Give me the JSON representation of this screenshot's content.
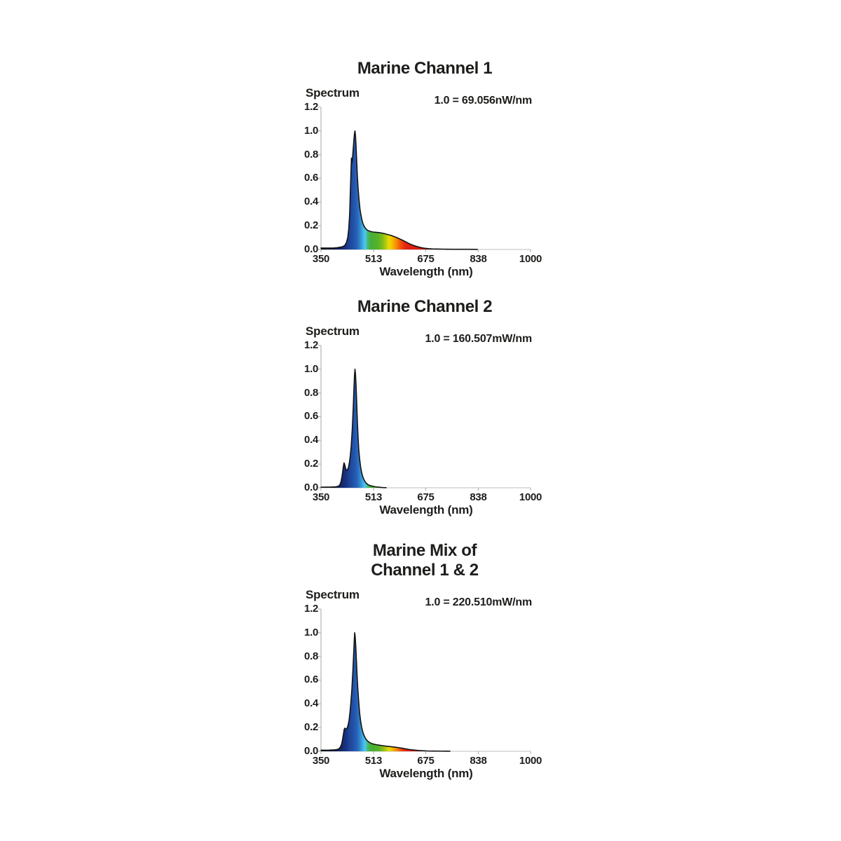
{
  "text_color": "#1d1d1b",
  "axis_color": "#b5b5b5",
  "baseline_color": "#c9c9c9",
  "curve_stroke_color": "#141414",
  "charts": [
    {
      "title_line1": "Marine Channel 1",
      "title_line2": "",
      "y_axis_label": "Spectrum",
      "scale_note": "1.0 = 69.056nW/nm",
      "x_axis_label": "Wavelength (nm)",
      "x_tick_labels": [
        "350",
        "513",
        "675",
        "838",
        "1000"
      ],
      "y_tick_labels": [
        "0.0",
        "0.2",
        "0.4",
        "0.6",
        "0.8",
        "1.0",
        "1.2"
      ]
    },
    {
      "title_line1": "Marine Channel 2",
      "title_line2": "",
      "y_axis_label": "Spectrum",
      "scale_note": "1.0 = 160.507mW/nm",
      "x_axis_label": "Wavelength (nm)",
      "x_tick_labels": [
        "350",
        "513",
        "675",
        "838",
        "1000"
      ],
      "y_tick_labels": [
        "0.0",
        "0.2",
        "0.4",
        "0.6",
        "0.8",
        "1.0",
        "1.2"
      ]
    },
    {
      "title_line1": "Marine Mix of",
      "title_line2": "Channel 1 & 2",
      "y_axis_label": "Spectrum",
      "scale_note": "1.0 = 220.510mW/nm",
      "x_axis_label": "Wavelength (nm)",
      "x_tick_labels": [
        "350",
        "513",
        "675",
        "838",
        "1000"
      ],
      "y_tick_labels": [
        "0.0",
        "0.2",
        "0.4",
        "0.6",
        "0.8",
        "1.0",
        "1.2"
      ]
    }
  ],
  "spectrum_colors": [
    {
      "nm": 350,
      "color": "#0a0a12"
    },
    {
      "nm": 400,
      "color": "#101c55"
    },
    {
      "nm": 425,
      "color": "#17307f"
    },
    {
      "nm": 443,
      "color": "#1f4a9e"
    },
    {
      "nm": 455,
      "color": "#2457af"
    },
    {
      "nm": 464,
      "color": "#2a6abd"
    },
    {
      "nm": 473,
      "color": "#338fd0"
    },
    {
      "nm": 481,
      "color": "#40b5e4"
    },
    {
      "nm": 487,
      "color": "#4cc8ef"
    },
    {
      "nm": 493,
      "color": "#47bd91"
    },
    {
      "nm": 500,
      "color": "#46b24a"
    },
    {
      "nm": 507,
      "color": "#45af36"
    },
    {
      "nm": 526,
      "color": "#54b329"
    },
    {
      "nm": 542,
      "color": "#86bd18"
    },
    {
      "nm": 552,
      "color": "#bacd0c"
    },
    {
      "nm": 561,
      "color": "#e7de06"
    },
    {
      "nm": 569,
      "color": "#f3c303"
    },
    {
      "nm": 578,
      "color": "#f6a201"
    },
    {
      "nm": 587,
      "color": "#f47d03"
    },
    {
      "nm": 597,
      "color": "#f05108"
    },
    {
      "nm": 607,
      "color": "#e93010"
    },
    {
      "nm": 619,
      "color": "#e21f12"
    },
    {
      "nm": 652,
      "color": "#da1911"
    },
    {
      "nm": 682,
      "color": "#b3140c"
    },
    {
      "nm": 712,
      "color": "#6f0f0a"
    },
    {
      "nm": 752,
      "color": "#2f0806"
    },
    {
      "nm": 810,
      "color": "#130a0a"
    },
    {
      "nm": 1000,
      "color": "#0c0c0c"
    }
  ],
  "chart_data": [
    {
      "type": "area",
      "title": "Marine Channel 1",
      "note": "1.0 = 69.056nW/nm",
      "xlabel": "Wavelength (nm)",
      "ylabel": "Spectrum",
      "x_range": [
        350,
        1000
      ],
      "y_range": [
        0,
        1.2
      ],
      "x_ticks": [
        350,
        513,
        675,
        838,
        1000
      ],
      "y_ticks": [
        0,
        0.2,
        0.4,
        0.6,
        0.8,
        1.0,
        1.2
      ],
      "grid": false,
      "points": [
        [
          350,
          0.012
        ],
        [
          370,
          0.012
        ],
        [
          390,
          0.013
        ],
        [
          400,
          0.015
        ],
        [
          410,
          0.02
        ],
        [
          418,
          0.025
        ],
        [
          424,
          0.035
        ],
        [
          429,
          0.06
        ],
        [
          433,
          0.1
        ],
        [
          436,
          0.17
        ],
        [
          439,
          0.3
        ],
        [
          441,
          0.48
        ],
        [
          443,
          0.65
        ],
        [
          444.5,
          0.77
        ],
        [
          446,
          0.73
        ],
        [
          448,
          0.78
        ],
        [
          450,
          0.85
        ],
        [
          452,
          0.92
        ],
        [
          454,
          0.98
        ],
        [
          455.5,
          1.0
        ],
        [
          457,
          0.96
        ],
        [
          459,
          0.86
        ],
        [
          461,
          0.73
        ],
        [
          463,
          0.61
        ],
        [
          465,
          0.52
        ],
        [
          468,
          0.42
        ],
        [
          471,
          0.34
        ],
        [
          474,
          0.29
        ],
        [
          477,
          0.25
        ],
        [
          480,
          0.22
        ],
        [
          484,
          0.195
        ],
        [
          489,
          0.175
        ],
        [
          494,
          0.163
        ],
        [
          500,
          0.155
        ],
        [
          507,
          0.15
        ],
        [
          513,
          0.147
        ],
        [
          520,
          0.145
        ],
        [
          528,
          0.143
        ],
        [
          536,
          0.14
        ],
        [
          544,
          0.136
        ],
        [
          552,
          0.13
        ],
        [
          560,
          0.124
        ],
        [
          568,
          0.118
        ],
        [
          576,
          0.11
        ],
        [
          584,
          0.102
        ],
        [
          592,
          0.092
        ],
        [
          600,
          0.082
        ],
        [
          608,
          0.071
        ],
        [
          616,
          0.06
        ],
        [
          624,
          0.049
        ],
        [
          632,
          0.04
        ],
        [
          640,
          0.032
        ],
        [
          648,
          0.025
        ],
        [
          656,
          0.019
        ],
        [
          664,
          0.014
        ],
        [
          673,
          0.01
        ],
        [
          683,
          0.007
        ],
        [
          695,
          0.005
        ],
        [
          710,
          0.004
        ],
        [
          730,
          0.003
        ],
        [
          760,
          0.002
        ],
        [
          800,
          0.002
        ],
        [
          835,
          0.001
        ]
      ]
    },
    {
      "type": "area",
      "title": "Marine Channel 2",
      "note": "1.0 = 160.507mW/nm",
      "xlabel": "Wavelength (nm)",
      "ylabel": "Spectrum",
      "x_range": [
        350,
        1000
      ],
      "y_range": [
        0,
        1.2
      ],
      "x_ticks": [
        350,
        513,
        675,
        838,
        1000
      ],
      "y_ticks": [
        0,
        0.2,
        0.4,
        0.6,
        0.8,
        1.0,
        1.2
      ],
      "grid": false,
      "points": [
        [
          350,
          0.005
        ],
        [
          380,
          0.006
        ],
        [
          395,
          0.008
        ],
        [
          403,
          0.012
        ],
        [
          408,
          0.022
        ],
        [
          412,
          0.05
        ],
        [
          415,
          0.09
        ],
        [
          418,
          0.15
        ],
        [
          420,
          0.19
        ],
        [
          421.5,
          0.21
        ],
        [
          423,
          0.2
        ],
        [
          425,
          0.18
        ],
        [
          427,
          0.16
        ],
        [
          429.5,
          0.145
        ],
        [
          432,
          0.15
        ],
        [
          435,
          0.17
        ],
        [
          438,
          0.21
        ],
        [
          441,
          0.27
        ],
        [
          444,
          0.36
        ],
        [
          447,
          0.49
        ],
        [
          450,
          0.67
        ],
        [
          452,
          0.82
        ],
        [
          454,
          0.95
        ],
        [
          455.5,
          1.0
        ],
        [
          457,
          0.96
        ],
        [
          459,
          0.85
        ],
        [
          461,
          0.7
        ],
        [
          463,
          0.55
        ],
        [
          465,
          0.43
        ],
        [
          467,
          0.33
        ],
        [
          470,
          0.24
        ],
        [
          473,
          0.175
        ],
        [
          476,
          0.13
        ],
        [
          479,
          0.1
        ],
        [
          482,
          0.075
        ],
        [
          486,
          0.055
        ],
        [
          490,
          0.04
        ],
        [
          495,
          0.028
        ],
        [
          500,
          0.021
        ],
        [
          506,
          0.016
        ],
        [
          512,
          0.012
        ],
        [
          518,
          0.009
        ],
        [
          525,
          0.006
        ],
        [
          533,
          0.004
        ],
        [
          542,
          0.002
        ],
        [
          552,
          0.001
        ]
      ]
    },
    {
      "type": "area",
      "title": "Marine Mix of Channel 1 & 2",
      "note": "1.0 = 220.510mW/nm",
      "xlabel": "Wavelength (nm)",
      "ylabel": "Spectrum",
      "x_range": [
        350,
        1000
      ],
      "y_range": [
        0,
        1.2
      ],
      "x_ticks": [
        350,
        513,
        675,
        838,
        1000
      ],
      "y_ticks": [
        0,
        0.2,
        0.4,
        0.6,
        0.8,
        1.0,
        1.2
      ],
      "grid": false,
      "points": [
        [
          350,
          0.009
        ],
        [
          375,
          0.01
        ],
        [
          392,
          0.012
        ],
        [
          400,
          0.015
        ],
        [
          406,
          0.022
        ],
        [
          410,
          0.035
        ],
        [
          414,
          0.06
        ],
        [
          417,
          0.1
        ],
        [
          420,
          0.15
        ],
        [
          422,
          0.185
        ],
        [
          424,
          0.195
        ],
        [
          426,
          0.19
        ],
        [
          428,
          0.188
        ],
        [
          431,
          0.195
        ],
        [
          434,
          0.22
        ],
        [
          437,
          0.26
        ],
        [
          440,
          0.33
        ],
        [
          443,
          0.42
        ],
        [
          446,
          0.53
        ],
        [
          449,
          0.68
        ],
        [
          451,
          0.8
        ],
        [
          453,
          0.92
        ],
        [
          454.5,
          1.0
        ],
        [
          456,
          0.97
        ],
        [
          458,
          0.88
        ],
        [
          460,
          0.76
        ],
        [
          462,
          0.64
        ],
        [
          464,
          0.54
        ],
        [
          467,
          0.42
        ],
        [
          470,
          0.32
        ],
        [
          473,
          0.255
        ],
        [
          476,
          0.205
        ],
        [
          480,
          0.16
        ],
        [
          484,
          0.13
        ],
        [
          489,
          0.105
        ],
        [
          494,
          0.088
        ],
        [
          500,
          0.075
        ],
        [
          507,
          0.066
        ],
        [
          513,
          0.061
        ],
        [
          521,
          0.056
        ],
        [
          530,
          0.052
        ],
        [
          540,
          0.048
        ],
        [
          550,
          0.044
        ],
        [
          560,
          0.041
        ],
        [
          570,
          0.038
        ],
        [
          580,
          0.035
        ],
        [
          590,
          0.031
        ],
        [
          600,
          0.027
        ],
        [
          610,
          0.022
        ],
        [
          620,
          0.017
        ],
        [
          630,
          0.013
        ],
        [
          640,
          0.01
        ],
        [
          652,
          0.007
        ],
        [
          665,
          0.005
        ],
        [
          680,
          0.003
        ],
        [
          700,
          0.002
        ],
        [
          725,
          0.0015
        ],
        [
          750,
          0.001
        ]
      ]
    }
  ]
}
